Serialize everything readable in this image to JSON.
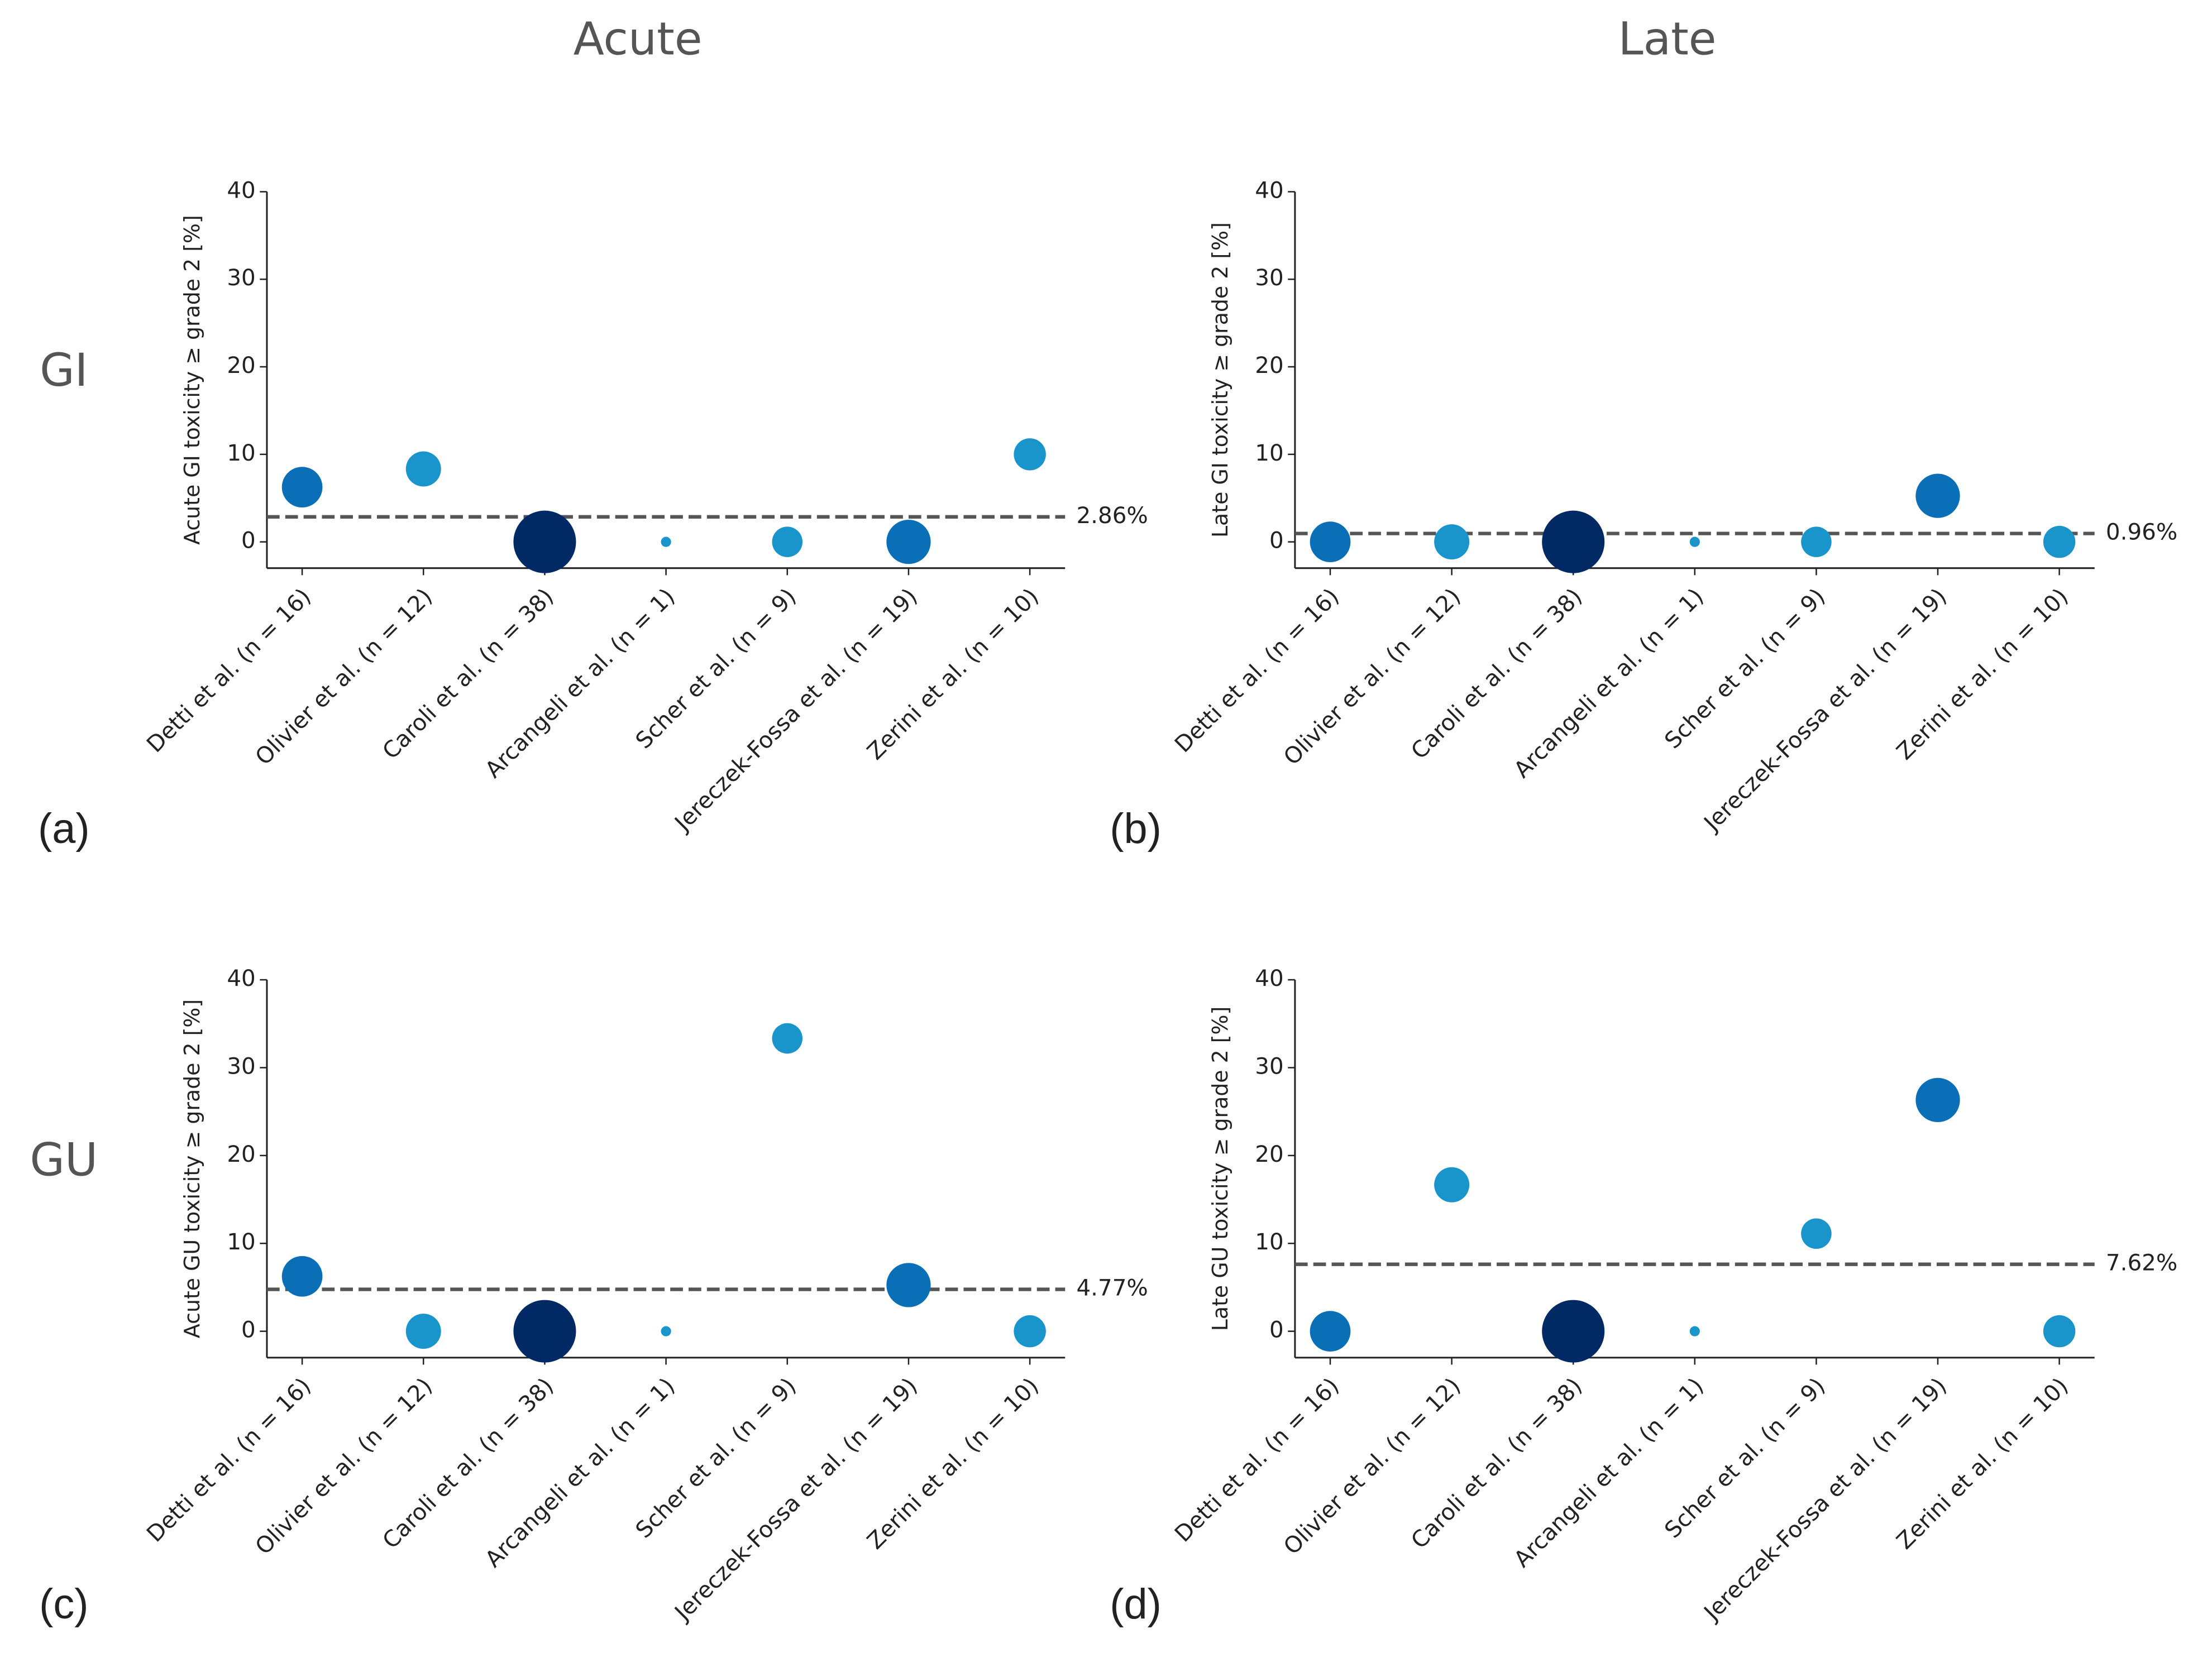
{
  "column_titles": [
    "Acute",
    "Late"
  ],
  "row_titles": [
    "GI",
    "GU"
  ],
  "chart_data": [
    {
      "type": "scatter",
      "panel_label": "(a)",
      "y_label": "Acute GI toxicity ≥ grade 2 [%]",
      "categories": [
        "Detti et al. (n = 16)",
        "Olivier et al. (n = 12)",
        "Caroli et al. (n = 38)",
        "Arcangeli et  al. (n = 1)",
        "Scher et al. (n = 9)",
        "Jereczek-Fossa et al. (n = 19)",
        "Zerini et al. (n = 10)"
      ],
      "values": [
        6.25,
        8.33,
        0,
        0,
        0,
        0,
        10
      ],
      "sizes": [
        16,
        12,
        38,
        1,
        9,
        19,
        10
      ],
      "colors": [
        "#0b6fb8",
        "#1a95cc",
        "#012a64",
        "#1a95cc",
        "#1a95cc",
        "#0b6fb8",
        "#1a95cc"
      ],
      "reference_line": {
        "value": 2.86,
        "label": "2.86%"
      },
      "ylim": [
        -3,
        40
      ],
      "yticks": [
        0,
        10,
        20,
        30,
        40
      ]
    },
    {
      "type": "scatter",
      "panel_label": "(b)",
      "y_label": "Late GI toxicity ≥ grade 2 [%]",
      "categories": [
        "Detti et al. (n = 16)",
        "Olivier et al. (n = 12)",
        "Caroli et al. (n = 38)",
        "Arcangeli et  al. (n = 1)",
        "Scher et al. (n = 9)",
        "Jereczek-Fossa et al. (n = 19)",
        "Zerini et al. (n = 10)"
      ],
      "values": [
        0,
        0,
        0,
        0,
        0,
        5.26,
        0
      ],
      "sizes": [
        16,
        12,
        38,
        1,
        9,
        19,
        10
      ],
      "colors": [
        "#0b6fb8",
        "#1a95cc",
        "#012a64",
        "#1a95cc",
        "#1a95cc",
        "#0b6fb8",
        "#1a95cc"
      ],
      "reference_line": {
        "value": 0.96,
        "label": "0.96%"
      },
      "ylim": [
        -3,
        40
      ],
      "yticks": [
        0,
        10,
        20,
        30,
        40
      ]
    },
    {
      "type": "scatter",
      "panel_label": "(c)",
      "y_label": "Acute GU toxicity ≥ grade 2 [%]",
      "categories": [
        "Detti et al. (n = 16)",
        "Olivier et al. (n = 12)",
        "Caroli et al. (n = 38)",
        "Arcangeli et  al. (n = 1)",
        "Scher et al. (n = 9)",
        "Jereczek-Fossa et al. (n = 19)",
        "Zerini et al. (n = 10)"
      ],
      "values": [
        6.25,
        0,
        0,
        0,
        33.33,
        5.26,
        0
      ],
      "sizes": [
        16,
        12,
        38,
        1,
        9,
        19,
        10
      ],
      "colors": [
        "#0b6fb8",
        "#1a95cc",
        "#012a64",
        "#1a95cc",
        "#1a95cc",
        "#0b6fb8",
        "#1a95cc"
      ],
      "reference_line": {
        "value": 4.77,
        "label": "4.77%"
      },
      "ylim": [
        -3,
        40
      ],
      "yticks": [
        0,
        10,
        20,
        30,
        40
      ]
    },
    {
      "type": "scatter",
      "panel_label": "(d)",
      "y_label": "Late GU toxicity ≥ grade 2 [%]",
      "categories": [
        "Detti et al. (n = 16)",
        "Olivier et al. (n = 12)",
        "Caroli et al. (n = 38)",
        "Arcangeli et  al. (n = 1)",
        "Scher et al. (n = 9)",
        "Jereczek-Fossa et al. (n = 19)",
        "Zerini et al. (n = 10)"
      ],
      "values": [
        0,
        16.67,
        0,
        0,
        11.11,
        26.32,
        0
      ],
      "sizes": [
        16,
        12,
        38,
        1,
        9,
        19,
        10
      ],
      "colors": [
        "#0b6fb8",
        "#1a95cc",
        "#012a64",
        "#1a95cc",
        "#1a95cc",
        "#0b6fb8",
        "#1a95cc"
      ],
      "reference_line": {
        "value": 7.62,
        "label": "7.62%"
      },
      "ylim": [
        -3,
        40
      ],
      "yticks": [
        0,
        10,
        20,
        30,
        40
      ]
    }
  ]
}
